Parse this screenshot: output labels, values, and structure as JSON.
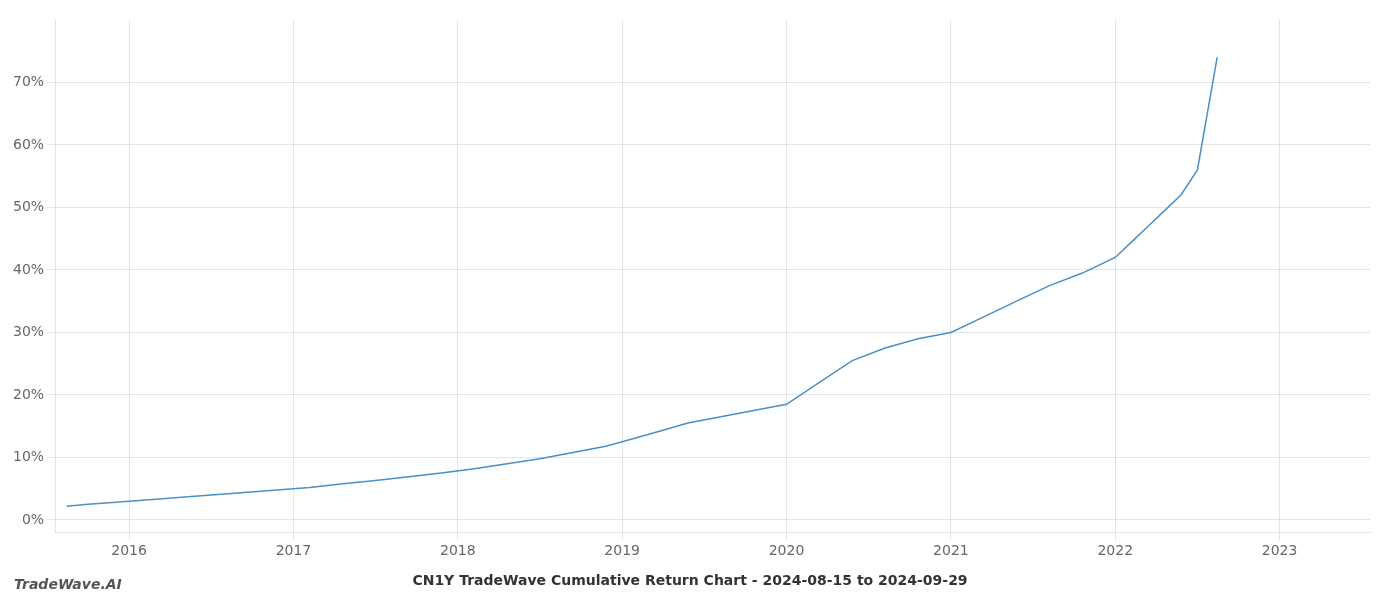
{
  "chart_data": {
    "type": "line",
    "title": "CN1Y TradeWave Cumulative Return Chart - 2024-08-15 to 2024-09-29",
    "annotations": [
      "TradeWave.AI"
    ],
    "color": "#4a90c4",
    "grid": true,
    "x": [
      2015.62,
      2015.75,
      2015.9,
      2016.1,
      2016.3,
      2016.5,
      2016.7,
      2016.9,
      2017.1,
      2017.3,
      2017.5,
      2017.7,
      2017.9,
      2018.1,
      2018.3,
      2018.5,
      2018.7,
      2018.9,
      2019.0,
      2019.2,
      2019.4,
      2019.6,
      2019.8,
      2020.0,
      2020.2,
      2020.4,
      2020.6,
      2020.8,
      2021.0,
      2021.2,
      2021.4,
      2021.6,
      2021.8,
      2022.0,
      2022.1,
      2022.2,
      2022.3,
      2022.4,
      2022.5,
      2022.62
    ],
    "values": [
      2.2,
      2.5,
      2.8,
      3.2,
      3.6,
      4.0,
      4.4,
      4.8,
      5.2,
      5.8,
      6.3,
      6.9,
      7.5,
      8.2,
      9.0,
      9.8,
      10.8,
      11.8,
      12.5,
      14.0,
      15.5,
      16.5,
      17.5,
      18.5,
      22.0,
      25.5,
      27.5,
      29.0,
      30.0,
      32.5,
      35.0,
      37.5,
      39.5,
      42.0,
      44.5,
      47.0,
      49.5,
      52.0,
      56.0,
      74.0
    ],
    "xlim": [
      2015.55,
      2023.55
    ],
    "xticks": [
      2016,
      2017,
      2018,
      2019,
      2020,
      2021,
      2022,
      2023
    ],
    "ylim": [
      -2,
      80
    ],
    "yticks": [
      {
        "value": 0,
        "label": "0%"
      },
      {
        "value": 10,
        "label": "10%"
      },
      {
        "value": 20,
        "label": "20%"
      },
      {
        "value": 30,
        "label": "30%"
      },
      {
        "value": 40,
        "label": "40%"
      },
      {
        "value": 50,
        "label": "50%"
      },
      {
        "value": 60,
        "label": "60%"
      },
      {
        "value": 70,
        "label": "70%"
      }
    ]
  }
}
